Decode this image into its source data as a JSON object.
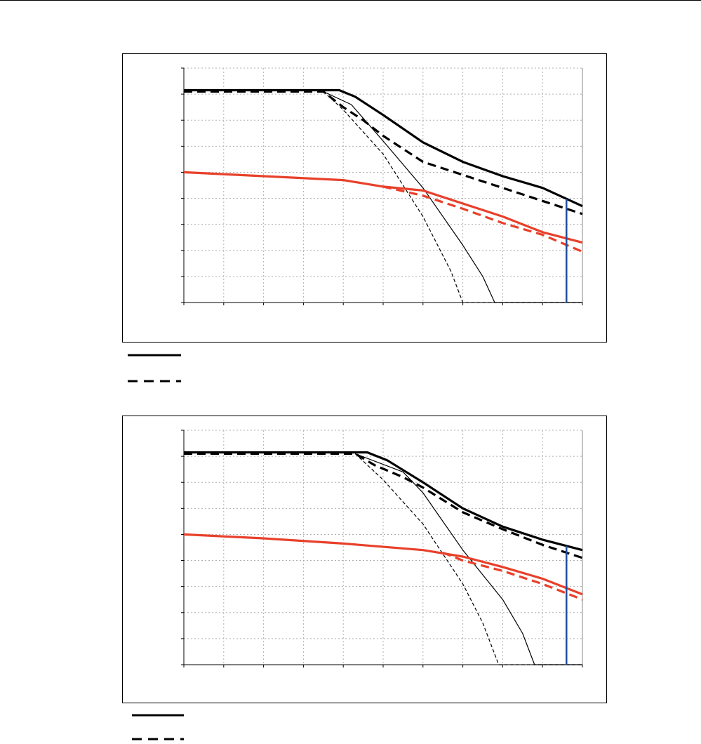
{
  "colors": {
    "black": "#000000",
    "red": "#e8402a",
    "blue": "#1f4e9c",
    "grid": "#b0b0b0"
  },
  "chart_data": [
    {
      "type": "line",
      "title": "",
      "xlabel": "",
      "ylabel": "",
      "xlim": [
        0,
        10
      ],
      "ylim": [
        0,
        9
      ],
      "grid": true,
      "legend": "below",
      "series": [
        {
          "style": "black-thick-solid",
          "x": [
            0,
            3.9,
            4.3,
            5,
            6,
            7,
            8,
            9,
            10
          ],
          "y": [
            8.15,
            8.15,
            7.9,
            7.2,
            6.15,
            5.4,
            4.85,
            4.4,
            3.7
          ]
        },
        {
          "style": "black-thick-dashed",
          "x": [
            0,
            3.5,
            4,
            4.5,
            5,
            6,
            7,
            8,
            9,
            10
          ],
          "y": [
            8.1,
            8.1,
            7.5,
            7.0,
            6.4,
            5.4,
            4.9,
            4.4,
            3.9,
            3.4
          ]
        },
        {
          "style": "black-thin-solid",
          "x": [
            3.5,
            4.2,
            5,
            6,
            7,
            7.5,
            7.8,
            10
          ],
          "y": [
            8.1,
            7.6,
            6.2,
            4.4,
            2.2,
            1.0,
            0,
            0
          ]
        },
        {
          "style": "black-thin-dashed",
          "x": [
            3.5,
            4,
            5,
            6,
            6.7,
            7,
            10
          ],
          "y": [
            8.1,
            7.4,
            5.7,
            3.3,
            1.2,
            0,
            0
          ]
        },
        {
          "style": "red-thick-solid",
          "x": [
            0,
            2,
            4,
            5,
            6,
            7,
            8,
            9,
            10
          ],
          "y": [
            5.0,
            4.85,
            4.7,
            4.45,
            4.3,
            3.8,
            3.3,
            2.7,
            2.3
          ]
        },
        {
          "style": "red-thick-dashed",
          "x": [
            5,
            6,
            7,
            8,
            9,
            10
          ],
          "y": [
            4.45,
            4.1,
            3.6,
            3.05,
            2.6,
            1.95
          ]
        }
      ],
      "vertical_marker_x": 9.6
    },
    {
      "type": "line",
      "title": "",
      "xlabel": "",
      "ylabel": "",
      "xlim": [
        0,
        10
      ],
      "ylim": [
        0,
        9
      ],
      "grid": true,
      "legend": "below",
      "series": [
        {
          "style": "black-thick-solid",
          "x": [
            0,
            4.6,
            5.1,
            6,
            7,
            8,
            9,
            10
          ],
          "y": [
            8.15,
            8.15,
            7.85,
            7.0,
            6.0,
            5.3,
            4.8,
            4.4
          ]
        },
        {
          "style": "black-thick-dashed",
          "x": [
            0,
            4.3,
            4.8,
            5.5,
            6,
            7,
            8,
            9,
            10
          ],
          "y": [
            8.1,
            8.1,
            7.65,
            7.2,
            6.8,
            5.85,
            5.2,
            4.6,
            4.1
          ]
        },
        {
          "style": "black-thin-solid",
          "x": [
            4.3,
            5.5,
            6,
            7,
            8,
            8.5,
            8.8,
            10
          ],
          "y": [
            8.1,
            7.4,
            6.6,
            4.4,
            2.5,
            1.2,
            0,
            0
          ]
        },
        {
          "style": "black-thin-dashed",
          "x": [
            4.3,
            5,
            6,
            7,
            7.5,
            7.9,
            10
          ],
          "y": [
            8.1,
            7.1,
            5.4,
            3.1,
            1.6,
            0,
            0
          ]
        },
        {
          "style": "red-thick-solid",
          "x": [
            0,
            2,
            4,
            6,
            7,
            8,
            9,
            10
          ],
          "y": [
            5.0,
            4.85,
            4.65,
            4.4,
            4.15,
            3.75,
            3.3,
            2.7
          ]
        },
        {
          "style": "red-thick-dashed",
          "x": [
            6.5,
            7,
            8,
            9,
            10
          ],
          "y": [
            4.3,
            4.0,
            3.6,
            3.1,
            2.5
          ]
        }
      ],
      "vertical_marker_x": 9.6
    }
  ],
  "legend_styles": [
    "solid",
    "dashed"
  ]
}
